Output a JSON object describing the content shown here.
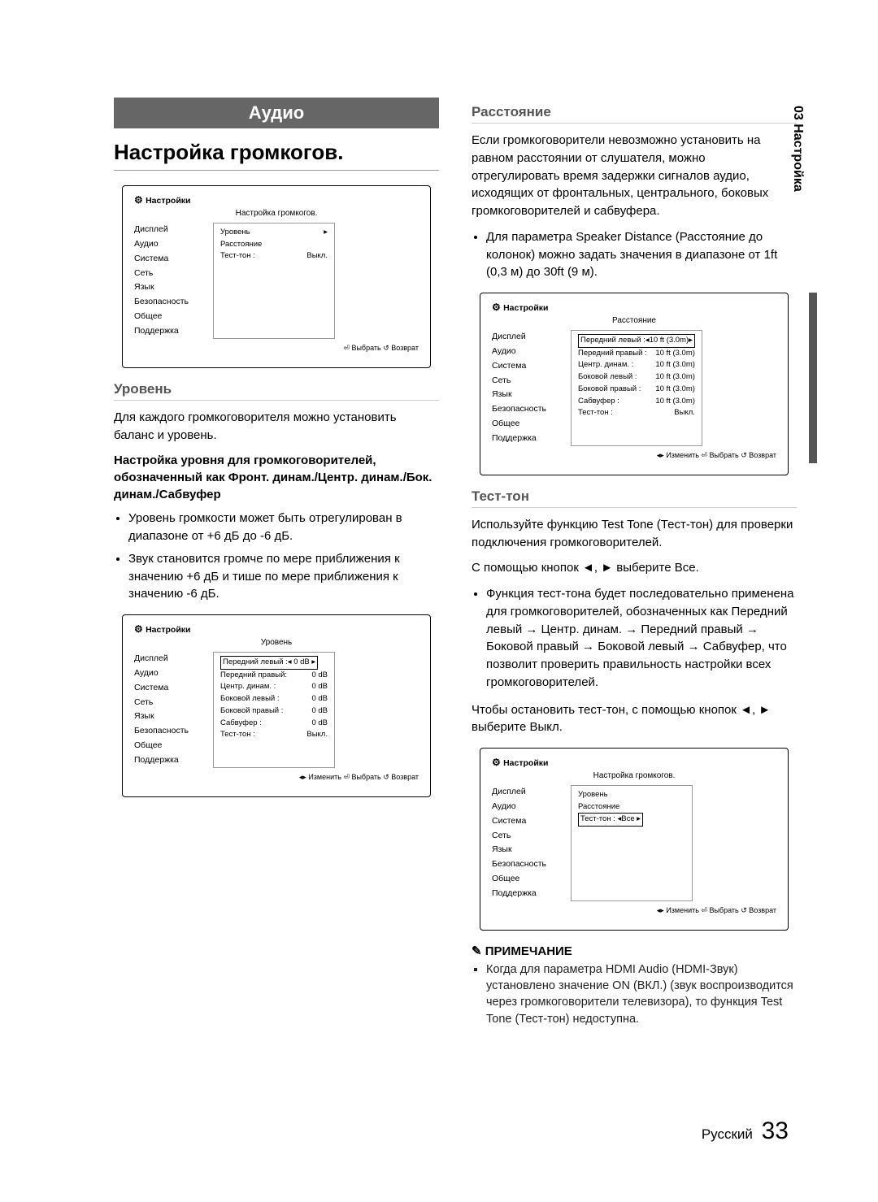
{
  "sideTab": "03 Настройка",
  "audio": {
    "band": "Аудио",
    "heading": "Настройка громкогов.",
    "dialog1": {
      "header": "Настройки",
      "title": "Настройка громкогов.",
      "menu": [
        "Дисплей",
        "Аудио",
        "Система",
        "Сеть",
        "Язык",
        "Безопасность",
        "Общее",
        "Поддержка"
      ],
      "rows": [
        {
          "l": "Уровень",
          "r": "▸"
        },
        {
          "l": "Расстояние",
          "r": ""
        },
        {
          "l": "Тест-тон   :",
          "r": "Выкл."
        }
      ],
      "hints": "⏎ Выбрать  ↺ Возврат"
    },
    "level": {
      "head": "Уровень",
      "intro": "Для каждого громкоговорителя можно установить баланс и уровень.",
      "bold": "Настройка уровня для громкоговорителей, обозначенный как Фронт. динам./Центр. динам./Бок. динам./Сабвуфер",
      "b1": "Уровень громкости может быть отрегулирован в диапазоне от +6 дБ до -6 дБ.",
      "b2": "Звук становится громче по мере приближения к значению +6 дБ и тише по мере приближения к значению -6 дБ."
    },
    "dialog2": {
      "header": "Настройки",
      "title": "Уровень",
      "menu": [
        "Дисплей",
        "Аудио",
        "Система",
        "Сеть",
        "Язык",
        "Безопасность",
        "Общее",
        "Поддержка"
      ],
      "rows": [
        {
          "l": "Передний левый  :",
          "r": "◂ 0 dB ▸",
          "hl": true
        },
        {
          "l": "Передний правый:",
          "r": "0 dB"
        },
        {
          "l": "Центр. динам.   :",
          "r": "0 dB"
        },
        {
          "l": "Боковой левый   :",
          "r": "0 dB"
        },
        {
          "l": "Боковой правый  :",
          "r": "0 dB"
        },
        {
          "l": "Сабвуфер        :",
          "r": "0 dB"
        },
        {
          "l": "Тест-тон        :",
          "r": "Выкл."
        }
      ],
      "hints": "◂▸ Изменить  ⏎ Выбрать  ↺ Возврат"
    }
  },
  "distance": {
    "head": "Расстояние",
    "intro": "Если громкоговорители невозможно установить на равном расстоянии от слушателя, можно отрегулировать время задержки сигналов аудио, исходящих от фронтальных, центрального, боковых громкоговорителей и сабвуфера.",
    "b1": "Для параметра Speaker Distance (Расстояние до колонок) можно задать значения в диапазоне от 1ft (0,3 м) до 30ft (9 м).",
    "dialog": {
      "header": "Настройки",
      "title": "Расстояние",
      "menu": [
        "Дисплей",
        "Аудио",
        "Система",
        "Сеть",
        "Язык",
        "Безопасность",
        "Общее",
        "Поддержка"
      ],
      "rows": [
        {
          "l": "Передний левый  :",
          "r": "◂10 ft (3.0m)▸",
          "hl": true
        },
        {
          "l": "Передний правый :",
          "r": "10 ft (3.0m)"
        },
        {
          "l": "Центр. динам.   :",
          "r": "10 ft (3.0m)"
        },
        {
          "l": "Боковой левый   :",
          "r": "10 ft (3.0m)"
        },
        {
          "l": "Боковой правый  :",
          "r": "10 ft (3.0m)"
        },
        {
          "l": "Сабвуфер        :",
          "r": "10 ft (3.0m)"
        },
        {
          "l": "Тест-тон        :",
          "r": "Выкл."
        }
      ],
      "hints": "◂▸ Изменить  ⏎ Выбрать  ↺ Возврат"
    }
  },
  "testtone": {
    "head": "Тест-тон",
    "intro": "Используйте функцию Test Tone (Тест-тон) для проверки подключения громкоговорителей.",
    "line2": "С помощью кнопок ◄, ► выберите Все.",
    "b1": "Функция тест-тона будет последовательно применена для громкоговорителей, обозначенных как Передний левый → Центр. динам. → Передний правый → Боковой правый → Боковой левый → Сабвуфер, что позволит проверить правильность настройки всех громкоговорителей.",
    "line3": "Чтобы остановить тест-тон, с помощью кнопок ◄, ► выберите Выкл.",
    "dialog": {
      "header": "Настройки",
      "title": "Настройка громкогов.",
      "menu": [
        "Дисплей",
        "Аудио",
        "Система",
        "Сеть",
        "Язык",
        "Безопасность",
        "Общее",
        "Поддержка"
      ],
      "rows": [
        {
          "l": "Уровень",
          "r": ""
        },
        {
          "l": "Расстояние",
          "r": ""
        },
        {
          "l": "Тест-тон        : ◂",
          "r": "Все   ▸",
          "hl": true
        }
      ],
      "hints": "◂▸ Изменить  ⏎ Выбрать  ↺ Возврат"
    }
  },
  "note": {
    "head": "ПРИМЕЧАНИЕ",
    "text": "Когда для параметра HDMI Audio (HDMI-Звук) установлено значение ON (ВКЛ.) (звук воспроизводится через громкоговорители телевизора), то функция Test Tone (Тест-тон) недоступна."
  },
  "footer": {
    "lang": "Русский",
    "page": "33"
  }
}
